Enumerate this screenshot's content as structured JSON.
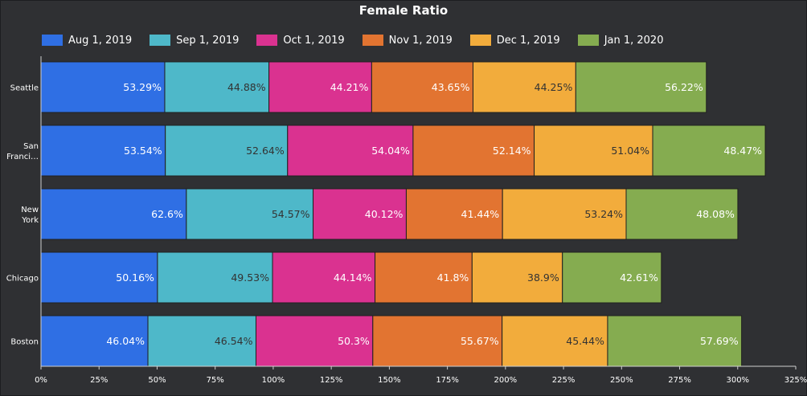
{
  "chart_data": {
    "type": "bar",
    "orientation": "horizontal",
    "stacked": true,
    "title": "Female Ratio",
    "categories": [
      "Seattle",
      "San Franci…",
      "New York",
      "Chicago",
      "Boston"
    ],
    "series": [
      {
        "name": "Aug 1, 2019",
        "color": "#2f6fe4",
        "values": [
          53.29,
          53.54,
          62.6,
          50.16,
          46.04
        ],
        "labels": [
          "53.29%",
          "53.54%",
          "62.6%",
          "50.16%",
          "46.04%"
        ]
      },
      {
        "name": "Sep 1, 2019",
        "color": "#4eb8c9",
        "values": [
          44.88,
          52.64,
          54.57,
          49.53,
          46.54
        ],
        "labels": [
          "44.88%",
          "52.64%",
          "54.57%",
          "49.53%",
          "46.54%"
        ]
      },
      {
        "name": "Oct 1, 2019",
        "color": "#da3290",
        "values": [
          44.21,
          54.04,
          40.12,
          44.14,
          50.3
        ],
        "labels": [
          "44.21%",
          "54.04%",
          "40.12%",
          "44.14%",
          "50.3%"
        ]
      },
      {
        "name": "Nov 1, 2019",
        "color": "#e27431",
        "values": [
          43.65,
          52.14,
          41.44,
          41.8,
          55.67
        ],
        "labels": [
          "43.65%",
          "52.14%",
          "41.44%",
          "41.8%",
          "55.67%"
        ]
      },
      {
        "name": "Dec 1, 2019",
        "color": "#f2ac3c",
        "values": [
          44.25,
          51.04,
          53.24,
          38.9,
          45.44
        ],
        "labels": [
          "44.25%",
          "51.04%",
          "53.24%",
          "38.9%",
          "45.44%"
        ]
      },
      {
        "name": "Jan 1, 2020",
        "color": "#85ac50",
        "values": [
          56.22,
          48.47,
          48.08,
          42.61,
          57.69
        ],
        "labels": [
          "56.22%",
          "48.47%",
          "48.08%",
          "42.61%",
          "57.69%"
        ]
      }
    ],
    "xlim": [
      0,
      325
    ],
    "xticks": [
      0,
      25,
      50,
      75,
      100,
      125,
      150,
      175,
      200,
      225,
      250,
      275,
      300,
      325
    ],
    "xtick_labels": [
      "0%",
      "25%",
      "50%",
      "75%",
      "100%",
      "125%",
      "150%",
      "175%",
      "200%",
      "225%",
      "250%",
      "275%",
      "300%",
      "325%"
    ],
    "xlabel": "",
    "ylabel": "",
    "legend_position": "top-left",
    "grid": false
  },
  "colors": {
    "background": "#2f3033",
    "axis": "#cfcfcf",
    "text": "#ffffff",
    "light_label_text": "#333333",
    "bar_outline": "#1f1f1f"
  }
}
